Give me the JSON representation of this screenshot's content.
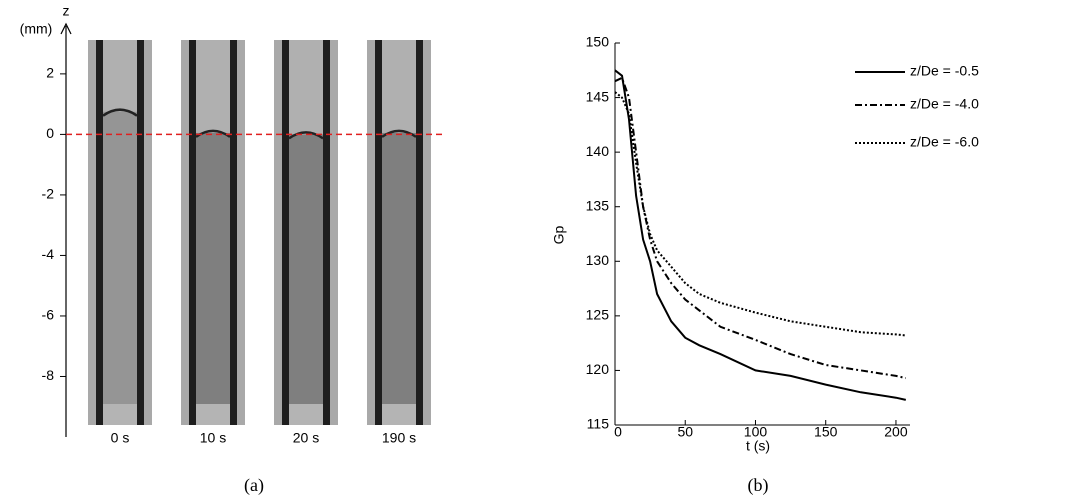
{
  "chart_data": [
    {
      "type": "images",
      "ylabel": "z",
      "yunit": "(mm)",
      "ylim": [
        -10,
        3.45
      ],
      "yticks": [
        2,
        0,
        -2,
        -4,
        -6,
        -8
      ],
      "frames": [
        "0 s",
        "10 s",
        "20 s",
        "190 s"
      ],
      "reference_z": 0,
      "reference_color": "#e02020",
      "caption": "(a)"
    },
    {
      "type": "line",
      "xlabel": "t (s)",
      "ylabel": "Gp",
      "xlim": [
        0,
        210
      ],
      "ylim": [
        115,
        150
      ],
      "xticks": [
        0,
        50,
        100,
        150,
        200
      ],
      "yticks": [
        115,
        120,
        125,
        130,
        135,
        140,
        145,
        150
      ],
      "legend": "upper-right",
      "caption": "(b)",
      "x": [
        0,
        5,
        10,
        15,
        20,
        25,
        30,
        40,
        50,
        60,
        75,
        100,
        125,
        150,
        175,
        200,
        207
      ],
      "series": [
        {
          "name": "z/De = -0.5",
          "color": "#000000",
          "dash": "solid",
          "values": [
            147.5,
            147,
            143,
            136,
            132,
            130,
            127,
            124.5,
            123,
            122.3,
            121.5,
            120,
            119.5,
            118.7,
            118,
            117.5,
            117.3
          ]
        },
        {
          "name": "z/De = -4.0",
          "color": "#000000",
          "dash": "dashdot",
          "values": [
            146.5,
            146.8,
            145,
            140,
            135,
            132,
            130,
            128,
            126.5,
            125.5,
            124,
            122.8,
            121.5,
            120.5,
            120,
            119.5,
            119.3
          ]
        },
        {
          "name": "z/De = -6.0",
          "color": "#000000",
          "dash": "dotted",
          "values": [
            145.5,
            145,
            143.5,
            139,
            135,
            132.5,
            131,
            129.5,
            128,
            127,
            126.2,
            125.3,
            124.5,
            124,
            123.5,
            123.3,
            123.2
          ]
        }
      ]
    }
  ]
}
